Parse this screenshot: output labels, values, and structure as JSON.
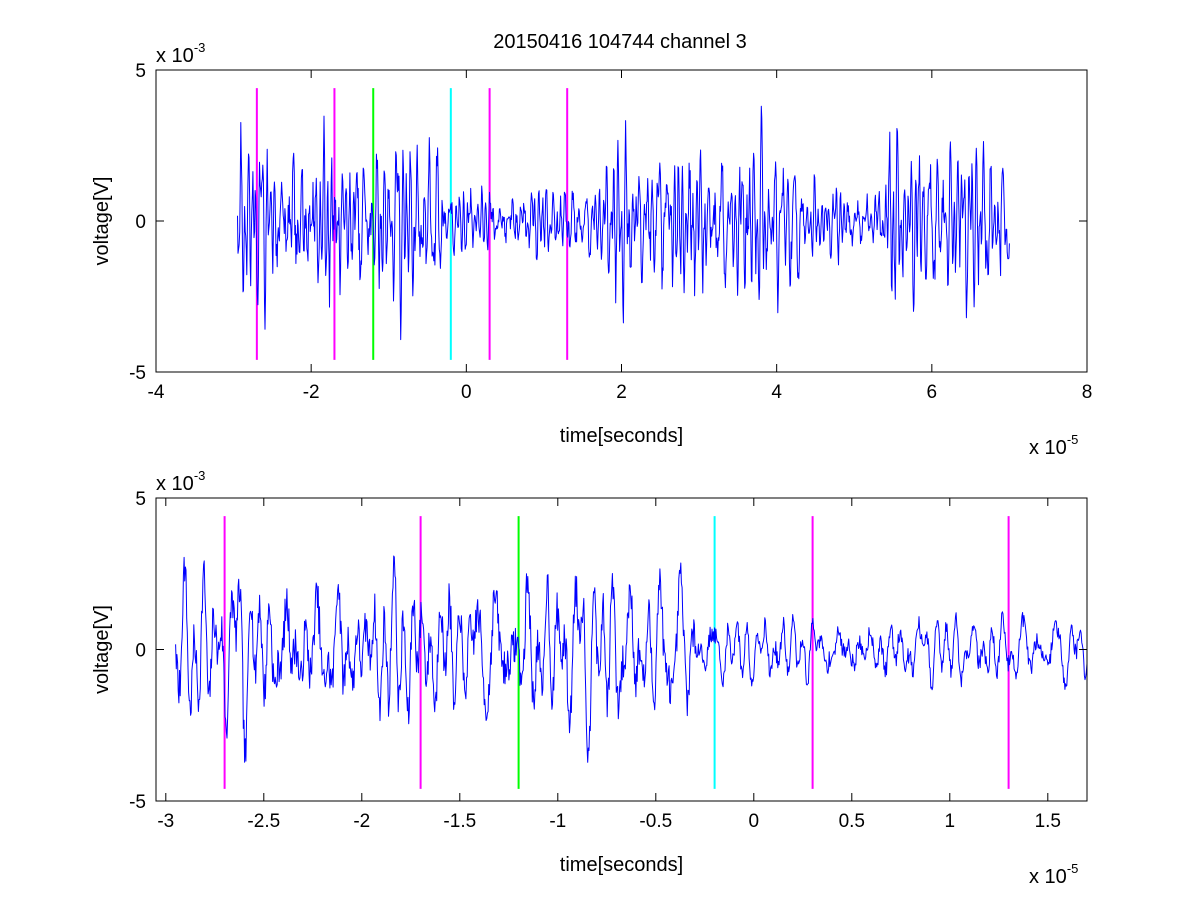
{
  "figure_title": "20150416 104744 channel 3",
  "chart_data": [
    {
      "type": "line",
      "title": "20150416 104744 channel 3",
      "xlabel": "time[seconds]",
      "ylabel": "voltage[V]",
      "x_multiplier": "x 10",
      "x_multiplier_exp": "-5",
      "y_multiplier": "x 10",
      "y_multiplier_exp": "-3",
      "xlim": [
        -4,
        8
      ],
      "ylim": [
        -5,
        5
      ],
      "xticks": [
        -4,
        -2,
        0,
        2,
        4,
        6,
        8
      ],
      "xtick_labels": [
        "-4",
        "-2",
        "0",
        "2",
        "4",
        "6",
        "8"
      ],
      "yticks": [
        -5,
        0,
        5
      ],
      "ytick_labels": [
        "-5",
        "0",
        "5"
      ],
      "grid": false,
      "colors": {
        "signal": "#0000ff",
        "marker_magenta": "#ff00ff",
        "marker_green": "#00ff00",
        "marker_cyan": "#00ffff"
      },
      "series": [
        {
          "style": "noise",
          "x_start": -2.95,
          "x_end": 7.0,
          "y_min": -4.2,
          "y_max": 4.0,
          "color": "#0000ff",
          "seed": 7
        }
      ],
      "markers": [
        {
          "x": -2.7,
          "color": "#ff00ff",
          "y_range": [
            -4.6,
            4.4
          ]
        },
        {
          "x": -1.7,
          "color": "#ff00ff",
          "y_range": [
            -4.6,
            4.4
          ]
        },
        {
          "x": -1.2,
          "color": "#00ff00",
          "y_range": [
            -4.6,
            4.4
          ]
        },
        {
          "x": -0.2,
          "color": "#00ffff",
          "y_range": [
            -4.6,
            4.4
          ]
        },
        {
          "x": 0.3,
          "color": "#ff00ff",
          "y_range": [
            -4.6,
            4.4
          ]
        },
        {
          "x": 1.3,
          "color": "#ff00ff",
          "y_range": [
            -4.6,
            4.4
          ]
        }
      ]
    },
    {
      "type": "line",
      "title": "",
      "xlabel": "time[seconds]",
      "ylabel": "voltage[V]",
      "x_multiplier": "x 10",
      "x_multiplier_exp": "-5",
      "y_multiplier": "x 10",
      "y_multiplier_exp": "-3",
      "xlim": [
        -3.05,
        1.7
      ],
      "ylim": [
        -5,
        5
      ],
      "xticks": [
        -3,
        -2.5,
        -2,
        -1.5,
        -1,
        -0.5,
        0,
        0.5,
        1,
        1.5
      ],
      "xtick_labels": [
        "-3",
        "-2.5",
        "-2",
        "-1.5",
        "-1",
        "-0.5",
        "0",
        "0.5",
        "1",
        "1.5"
      ],
      "yticks": [
        -5,
        0,
        5
      ],
      "ytick_labels": [
        "-5",
        "0",
        "5"
      ],
      "grid": false,
      "colors": {
        "signal": "#0000ff",
        "marker_magenta": "#ff00ff",
        "marker_green": "#00ff00",
        "marker_cyan": "#00ffff"
      },
      "series": [
        {
          "style": "noise",
          "x_start": -2.95,
          "x_end": 1.7,
          "y_min": -4.2,
          "y_max": 4.0,
          "color": "#0000ff",
          "seed": 7
        }
      ],
      "markers": [
        {
          "x": -2.7,
          "color": "#ff00ff",
          "y_range": [
            -4.6,
            4.4
          ]
        },
        {
          "x": -1.7,
          "color": "#ff00ff",
          "y_range": [
            -4.6,
            4.4
          ]
        },
        {
          "x": -1.2,
          "color": "#00ff00",
          "y_range": [
            -4.6,
            4.4
          ]
        },
        {
          "x": -0.2,
          "color": "#00ffff",
          "y_range": [
            -4.6,
            4.4
          ]
        },
        {
          "x": 0.3,
          "color": "#ff00ff",
          "y_range": [
            -4.6,
            4.4
          ]
        },
        {
          "x": 1.3,
          "color": "#ff00ff",
          "y_range": [
            -4.6,
            4.4
          ]
        }
      ]
    }
  ]
}
